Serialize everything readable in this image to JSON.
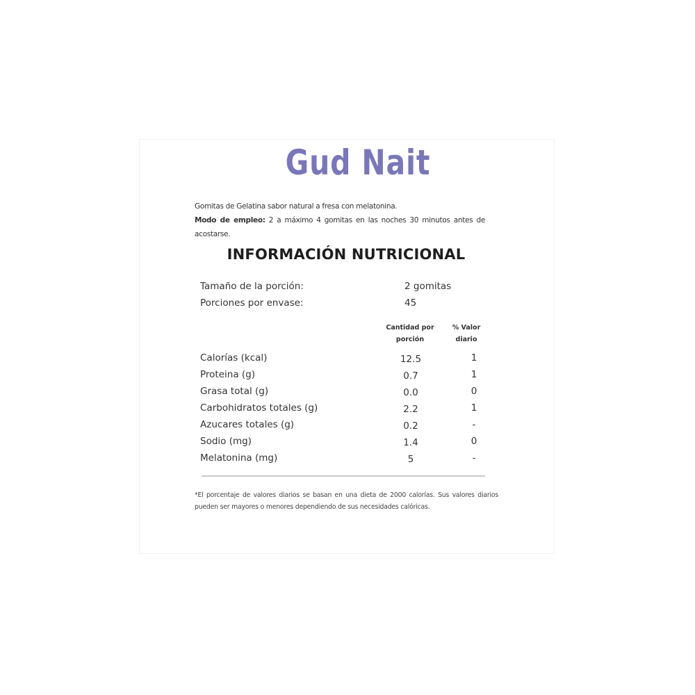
{
  "brand": "Gud Nait",
  "description": "Gomitas de Gelatina sabor natural a fresa con melatonina.",
  "usage_label": "Modo de empleo:",
  "usage_text": " 2 a máximo 4 gomitas en las noches 30 minutos antes de acostarse.",
  "heading": "INFORMACIÓN NUTRICIONAL",
  "serving": {
    "label": "Tamaño de la porción:",
    "value": "2 gomitas"
  },
  "servings_per": {
    "label": "Porciones por envase:",
    "value": "45"
  },
  "columns": {
    "amount": "Cantidad por porción",
    "dv": "% Valor diario"
  },
  "nutrients": [
    {
      "name": "Calorías (kcal)",
      "amount": "12.5",
      "dv": "1"
    },
    {
      "name": "Proteina (g)",
      "amount": "0.7",
      "dv": "1"
    },
    {
      "name": "Grasa total (g)",
      "amount": "0.0",
      "dv": "0"
    },
    {
      "name": "Carbohidratos totales (g)",
      "amount": "2.2",
      "dv": "1"
    },
    {
      "name": "Azucares totales (g)",
      "amount": "0.2",
      "dv": "-"
    },
    {
      "name": "Sodio (mg)",
      "amount": "1.4",
      "dv": "0"
    },
    {
      "name": "Melatonina (mg)",
      "amount": "5",
      "dv": "-"
    }
  ],
  "footnote": "*El porcentaje de valores diarios se basan en una dieta de 2000 calorías. Sus valores diarios pueden ser mayores o menores dependiendo de sus necesidades calóricas.",
  "colors": {
    "brand": "#7a77b9"
  }
}
